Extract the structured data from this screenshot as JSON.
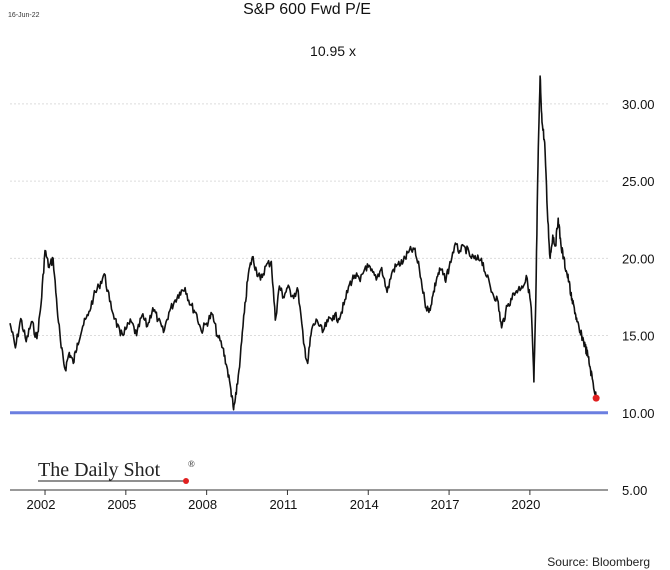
{
  "chart_data": {
    "type": "line",
    "title": "S&P 600 Fwd P/E",
    "date_stamp": "16-Jun-22",
    "annotation": "10.95 x",
    "watermark": "The Daily Shot",
    "watermark_mark": "®",
    "source": "Source: Bloomberg",
    "x_tick_labels": [
      "2002",
      "2005",
      "2008",
      "2011",
      "2014",
      "2017",
      "2020"
    ],
    "x_tick_years": [
      2002,
      2005,
      2008,
      2011,
      2014,
      2017,
      2020
    ],
    "xlim": [
      2000.7,
      2022.9
    ],
    "ylim": [
      5,
      32
    ],
    "y_ticks": [
      5,
      10,
      15,
      20,
      25,
      30
    ],
    "y_tick_labels": [
      "5.00",
      "10.00",
      "15.00",
      "20.00",
      "25.00",
      "30.00"
    ],
    "reference_line": {
      "value": 10.0,
      "color": "#6b7fe0"
    },
    "line_color": "#111111",
    "last_point": {
      "x": 2022.46,
      "y": 10.95,
      "color": "#e02020"
    },
    "series": [
      {
        "x": [
          2000.7,
          2000.9,
          2001.1,
          2001.3,
          2001.5,
          2001.7,
          2001.85,
          2002.0,
          2002.15,
          2002.3,
          2002.45,
          2002.6,
          2002.75,
          2002.9,
          2003.05,
          2003.2,
          2003.4,
          2003.6,
          2003.8,
          2004.0,
          2004.2,
          2004.4,
          2004.6,
          2004.8,
          2005.0,
          2005.2,
          2005.4,
          2005.6,
          2005.8,
          2006.0,
          2006.2,
          2006.4,
          2006.6,
          2006.8,
          2007.0,
          2007.2,
          2007.4,
          2007.6,
          2007.8,
          2008.0,
          2008.2,
          2008.4,
          2008.6,
          2008.75,
          2008.9,
          2009.0,
          2009.1,
          2009.25,
          2009.4,
          2009.55,
          2009.7,
          2009.85,
          2010.0,
          2010.2,
          2010.4,
          2010.55,
          2010.7,
          2010.85,
          2011.0,
          2011.2,
          2011.4,
          2011.6,
          2011.75,
          2011.9,
          2012.1,
          2012.3,
          2012.5,
          2012.7,
          2012.9,
          2013.1,
          2013.3,
          2013.5,
          2013.7,
          2013.9,
          2014.1,
          2014.3,
          2014.5,
          2014.7,
          2014.9,
          2015.1,
          2015.3,
          2015.5,
          2015.7,
          2015.9,
          2016.1,
          2016.25,
          2016.4,
          2016.55,
          2016.7,
          2016.85,
          2017.0,
          2017.2,
          2017.4,
          2017.6,
          2017.8,
          2018.0,
          2018.2,
          2018.4,
          2018.6,
          2018.8,
          2018.95,
          2019.1,
          2019.3,
          2019.5,
          2019.7,
          2019.9,
          2020.05,
          2020.15,
          2020.22,
          2020.3,
          2020.38,
          2020.45,
          2020.55,
          2020.65,
          2020.75,
          2020.85,
          2020.95,
          2021.05,
          2021.15,
          2021.25,
          2021.35,
          2021.45,
          2021.55,
          2021.65,
          2021.75,
          2021.85,
          2021.95,
          2022.05,
          2022.15,
          2022.25,
          2022.35,
          2022.46
        ],
        "y": [
          15.8,
          14.2,
          16.1,
          14.6,
          15.9,
          14.8,
          17.0,
          20.5,
          19.4,
          20.0,
          16.8,
          14.2,
          12.8,
          13.9,
          13.2,
          14.5,
          15.6,
          16.3,
          17.5,
          18.2,
          19.0,
          17.2,
          16.1,
          15.0,
          15.4,
          15.9,
          15.0,
          16.3,
          15.6,
          16.8,
          16.0,
          15.2,
          16.5,
          17.2,
          17.8,
          18.1,
          17.0,
          16.5,
          15.3,
          15.8,
          16.4,
          15.0,
          14.2,
          13.0,
          11.5,
          10.2,
          11.2,
          13.6,
          16.5,
          19.0,
          20.1,
          19.2,
          18.6,
          19.5,
          19.8,
          16.0,
          18.2,
          17.5,
          18.1,
          17.6,
          17.9,
          14.5,
          13.2,
          15.4,
          16.0,
          15.2,
          15.9,
          16.3,
          16.1,
          17.0,
          18.3,
          18.9,
          18.5,
          19.5,
          19.2,
          18.6,
          19.4,
          17.8,
          19.2,
          19.6,
          19.8,
          20.4,
          20.6,
          19.3,
          17.2,
          16.5,
          17.6,
          18.8,
          19.3,
          18.6,
          19.4,
          20.8,
          20.5,
          20.7,
          20.1,
          19.9,
          20.0,
          18.8,
          17.8,
          17.3,
          15.5,
          16.5,
          17.4,
          17.9,
          18.2,
          18.7,
          16.8,
          12.0,
          17.3,
          26.0,
          31.8,
          28.8,
          27.5,
          23.0,
          20.0,
          21.5,
          20.8,
          22.6,
          20.9,
          20.0,
          19.2,
          18.5,
          17.3,
          16.8,
          15.9,
          15.2,
          14.9,
          14.3,
          13.7,
          12.8,
          11.9,
          10.95
        ]
      }
    ]
  }
}
